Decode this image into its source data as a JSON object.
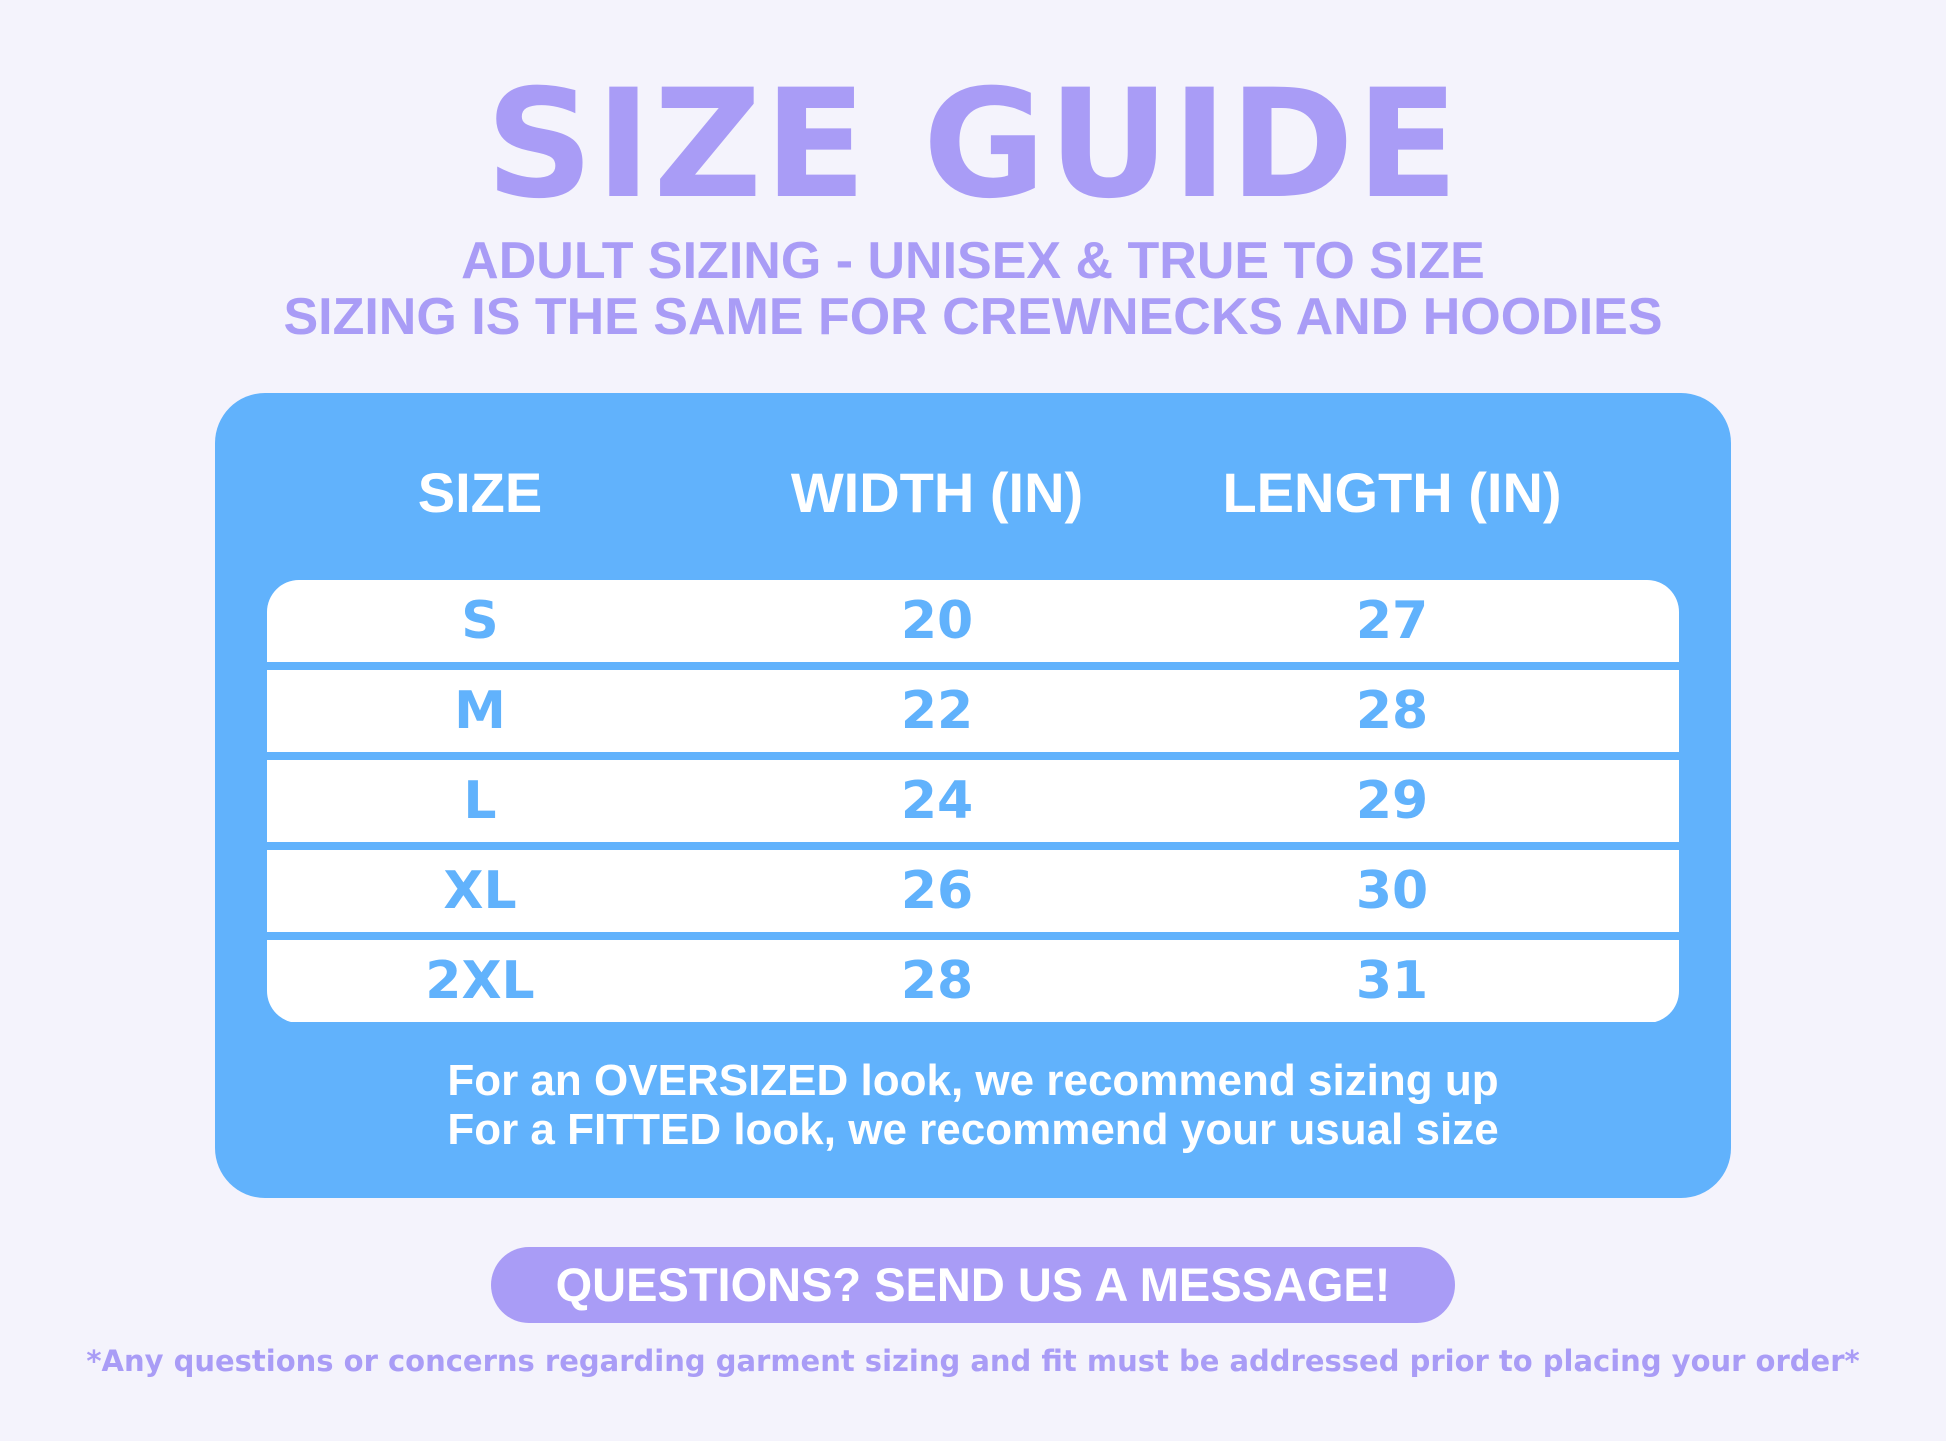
{
  "title": "SIZE GUIDE",
  "subtitle": [
    "ADULT SIZING - UNISEX & TRUE TO SIZE",
    "SIZING IS THE SAME FOR CREWNECKS AND HOODIES"
  ],
  "table": {
    "headers": [
      "SIZE",
      "WIDTH (IN)",
      "LENGTH (IN)"
    ],
    "rows": [
      [
        "S",
        "20",
        "27"
      ],
      [
        "M",
        "22",
        "28"
      ],
      [
        "L",
        "24",
        "29"
      ],
      [
        "XL",
        "26",
        "30"
      ],
      [
        "2XL",
        "28",
        "31"
      ]
    ]
  },
  "notes": [
    "For an OVERSIZED look, we recommend sizing up",
    "For a FITTED look, we recommend your usual size"
  ],
  "button": "QUESTIONS? SEND US A MESSAGE!",
  "disclaimer": "*Any questions or concerns regarding garment sizing and fit must be addressed prior to placing your order*",
  "colors": {
    "background": "#f4f3fc",
    "purple": "#a99cf6",
    "blue": "#61b2fc"
  }
}
